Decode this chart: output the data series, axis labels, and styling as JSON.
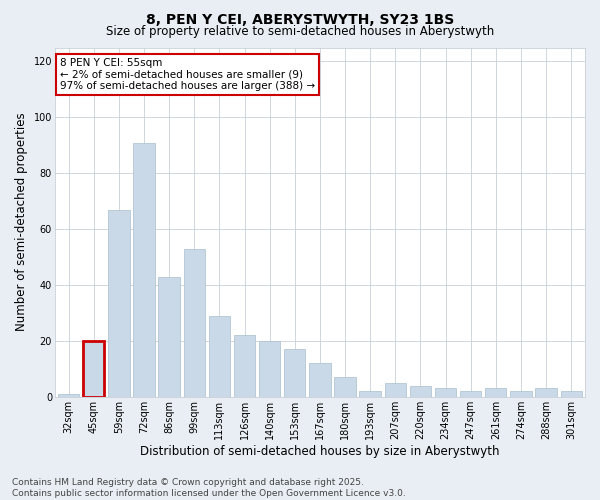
{
  "title": "8, PEN Y CEI, ABERYSTWYTH, SY23 1BS",
  "subtitle": "Size of property relative to semi-detached houses in Aberystwyth",
  "xlabel": "Distribution of semi-detached houses by size in Aberystwyth",
  "ylabel": "Number of semi-detached properties",
  "categories": [
    "32sqm",
    "45sqm",
    "59sqm",
    "72sqm",
    "86sqm",
    "99sqm",
    "113sqm",
    "126sqm",
    "140sqm",
    "153sqm",
    "167sqm",
    "180sqm",
    "193sqm",
    "207sqm",
    "220sqm",
    "234sqm",
    "247sqm",
    "261sqm",
    "274sqm",
    "288sqm",
    "301sqm"
  ],
  "values": [
    1,
    20,
    67,
    91,
    43,
    53,
    29,
    22,
    20,
    17,
    12,
    7,
    2,
    5,
    4,
    3,
    2,
    3,
    2,
    3,
    2
  ],
  "bar_color": "#c9d9e8",
  "bar_edge_color": "#aabfce",
  "highlight_bar_index": 1,
  "highlight_bar_edge_color": "#cc0000",
  "ylim": [
    0,
    125
  ],
  "yticks": [
    0,
    20,
    40,
    60,
    80,
    100,
    120
  ],
  "annotation_text": "8 PEN Y CEI: 55sqm\n← 2% of semi-detached houses are smaller (9)\n97% of semi-detached houses are larger (388) →",
  "annotation_box_color": "#ffffff",
  "annotation_box_edge_color": "#cc0000",
  "footnote": "Contains HM Land Registry data © Crown copyright and database right 2025.\nContains public sector information licensed under the Open Government Licence v3.0.",
  "bg_color": "#e8eef4",
  "plot_bg_color": "#ffffff",
  "grid_color": "#c8d0d8",
  "title_fontsize": 10,
  "subtitle_fontsize": 8.5,
  "axis_label_fontsize": 8.5,
  "tick_fontsize": 7,
  "annotation_fontsize": 7.5,
  "footnote_fontsize": 6.5
}
